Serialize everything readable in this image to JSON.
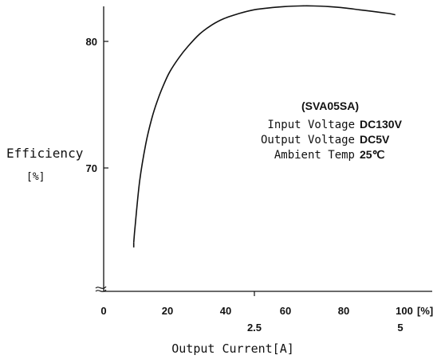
{
  "chart_data": {
    "type": "line",
    "xlabel": "Output Current[A]",
    "ylabel": "Efficiency",
    "ylabel_unit": "[%]",
    "xlim": [
      0,
      100
    ],
    "ylim": [
      60,
      83
    ],
    "grid": false,
    "x_ticks": [
      "0",
      "20",
      "40",
      "60",
      "80",
      "100"
    ],
    "x_unit_label": "[%]",
    "secondary_x_ticks": [
      {
        "x": 50,
        "label": "2.5"
      },
      {
        "x": 100,
        "label": "5"
      }
    ],
    "y_ticks": [
      {
        "value": 80,
        "label": "80"
      },
      {
        "value": 70,
        "label": "70"
      }
    ],
    "annotation": {
      "title": "(SVA05SA)",
      "lines": [
        {
          "label": "Input Voltage",
          "value": "DC130V"
        },
        {
          "label": "Output Voltage",
          "value": "DC5V"
        },
        {
          "label": "Ambient Temp",
          "value": "25℃"
        }
      ]
    },
    "series": [
      {
        "x": [
          10,
          10.5,
          12,
          14,
          16,
          18,
          20,
          22,
          25,
          28,
          32,
          36,
          40,
          45,
          50,
          55,
          60,
          65,
          70,
          75,
          80,
          85,
          90,
          95,
          97
        ],
        "y": [
          64.1,
          65.5,
          69.0,
          71.9,
          73.9,
          75.4,
          76.6,
          77.6,
          78.7,
          79.6,
          80.6,
          81.3,
          81.8,
          82.2,
          82.5,
          82.65,
          82.75,
          82.8,
          82.8,
          82.75,
          82.65,
          82.5,
          82.35,
          82.2,
          82.1
        ]
      }
    ]
  }
}
